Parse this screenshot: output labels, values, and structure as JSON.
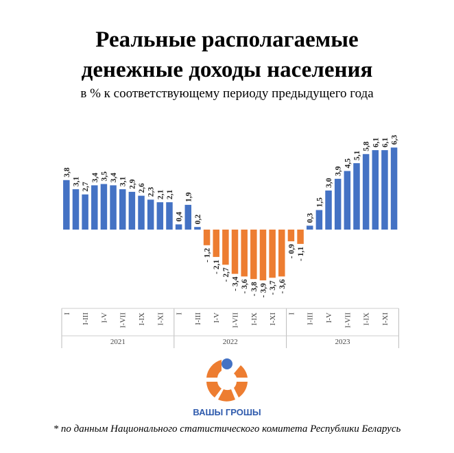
{
  "title_line1": "Реальные располагаемые",
  "title_line2": "денежные доходы населения",
  "subtitle": "в %  к соответствующему периоду предыдущего года",
  "footnote": "* по данным Национального статистического комитета Республики Беларусь",
  "logo": {
    "text": "ВАШЫ ГРОШЫ"
  },
  "colors": {
    "positive": "#4472C4",
    "negative": "#ED7D31"
  },
  "chart_data": {
    "type": "bar",
    "title": "Реальные располагаемые денежные доходы населения",
    "ylabel": "в % к соответствующему периоду предыдущего года",
    "years": [
      "2021",
      "2022",
      "2023"
    ],
    "period_labels": [
      "I",
      "I-III",
      "I-V",
      "I-VII",
      "I-IX",
      "I-XI"
    ],
    "values": [
      [
        3.8,
        3.1,
        2.7,
        3.4,
        3.5,
        3.4,
        3.1,
        2.9,
        2.6,
        2.3,
        2.1,
        2.1
      ],
      [
        0.4,
        1.9,
        0.2,
        -1.2,
        -2.1,
        -2.7,
        -3.4,
        -3.6,
        -3.8,
        -3.9,
        -3.7,
        -3.6
      ],
      [
        -0.9,
        -1.1,
        0.3,
        1.5,
        3.0,
        3.9,
        4.5,
        5.1,
        5.8,
        6.1,
        6.1,
        6.3
      ]
    ],
    "ylim": [
      -4.5,
      7
    ],
    "grid": false
  }
}
